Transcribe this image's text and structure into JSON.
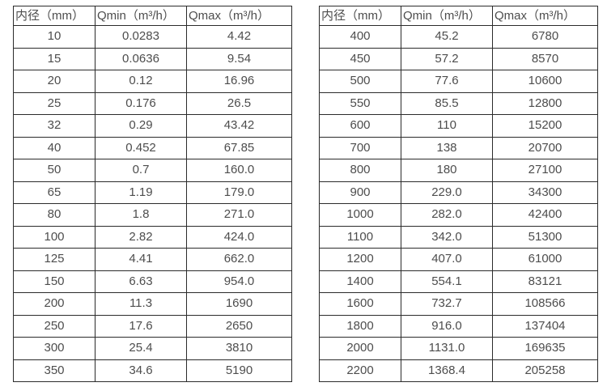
{
  "colors": {
    "border": "#2b2b2b",
    "text": "#4d4d4d",
    "background": "#ffffff"
  },
  "tables": [
    {
      "headers": [
        "内径（mm）",
        "Qmin（m³/h）",
        "Qmax（m³/h）"
      ],
      "rows": [
        [
          "10",
          "0.0283",
          "4.42"
        ],
        [
          "15",
          "0.0636",
          "9.54"
        ],
        [
          "20",
          "0.12",
          "16.96"
        ],
        [
          "25",
          "0.176",
          "26.5"
        ],
        [
          "32",
          "0.29",
          "43.42"
        ],
        [
          "40",
          "0.452",
          "67.85"
        ],
        [
          "50",
          "0.7",
          "160.0"
        ],
        [
          "65",
          "1.19",
          "179.0"
        ],
        [
          "80",
          "1.8",
          "271.0"
        ],
        [
          "100",
          "2.82",
          "424.0"
        ],
        [
          "125",
          "4.41",
          "662.0"
        ],
        [
          "150",
          "6.63",
          "954.0"
        ],
        [
          "200",
          "11.3",
          "1690"
        ],
        [
          "250",
          "17.6",
          "2650"
        ],
        [
          "300",
          "25.4",
          "3810"
        ],
        [
          "350",
          "34.6",
          "5190"
        ]
      ]
    },
    {
      "headers": [
        "内径（mm）",
        "Qmin（m³/h）",
        "Qmax（m³/h）"
      ],
      "rows": [
        [
          "400",
          "45.2",
          "6780"
        ],
        [
          "450",
          "57.2",
          "8570"
        ],
        [
          "500",
          "77.6",
          "10600"
        ],
        [
          "550",
          "85.5",
          "12800"
        ],
        [
          "600",
          "110",
          "15200"
        ],
        [
          "700",
          "138",
          "20700"
        ],
        [
          "800",
          "180",
          "27100"
        ],
        [
          "900",
          "229.0",
          "34300"
        ],
        [
          "1000",
          "282.0",
          "42400"
        ],
        [
          "1100",
          "342.0",
          "51300"
        ],
        [
          "1200",
          "407.0",
          "61000"
        ],
        [
          "1400",
          "554.1",
          "83121"
        ],
        [
          "1600",
          "732.7",
          "108566"
        ],
        [
          "1800",
          "916.0",
          "137404"
        ],
        [
          "2000",
          "1131.0",
          "169635"
        ],
        [
          "2200",
          "1368.4",
          "205258"
        ]
      ]
    }
  ]
}
